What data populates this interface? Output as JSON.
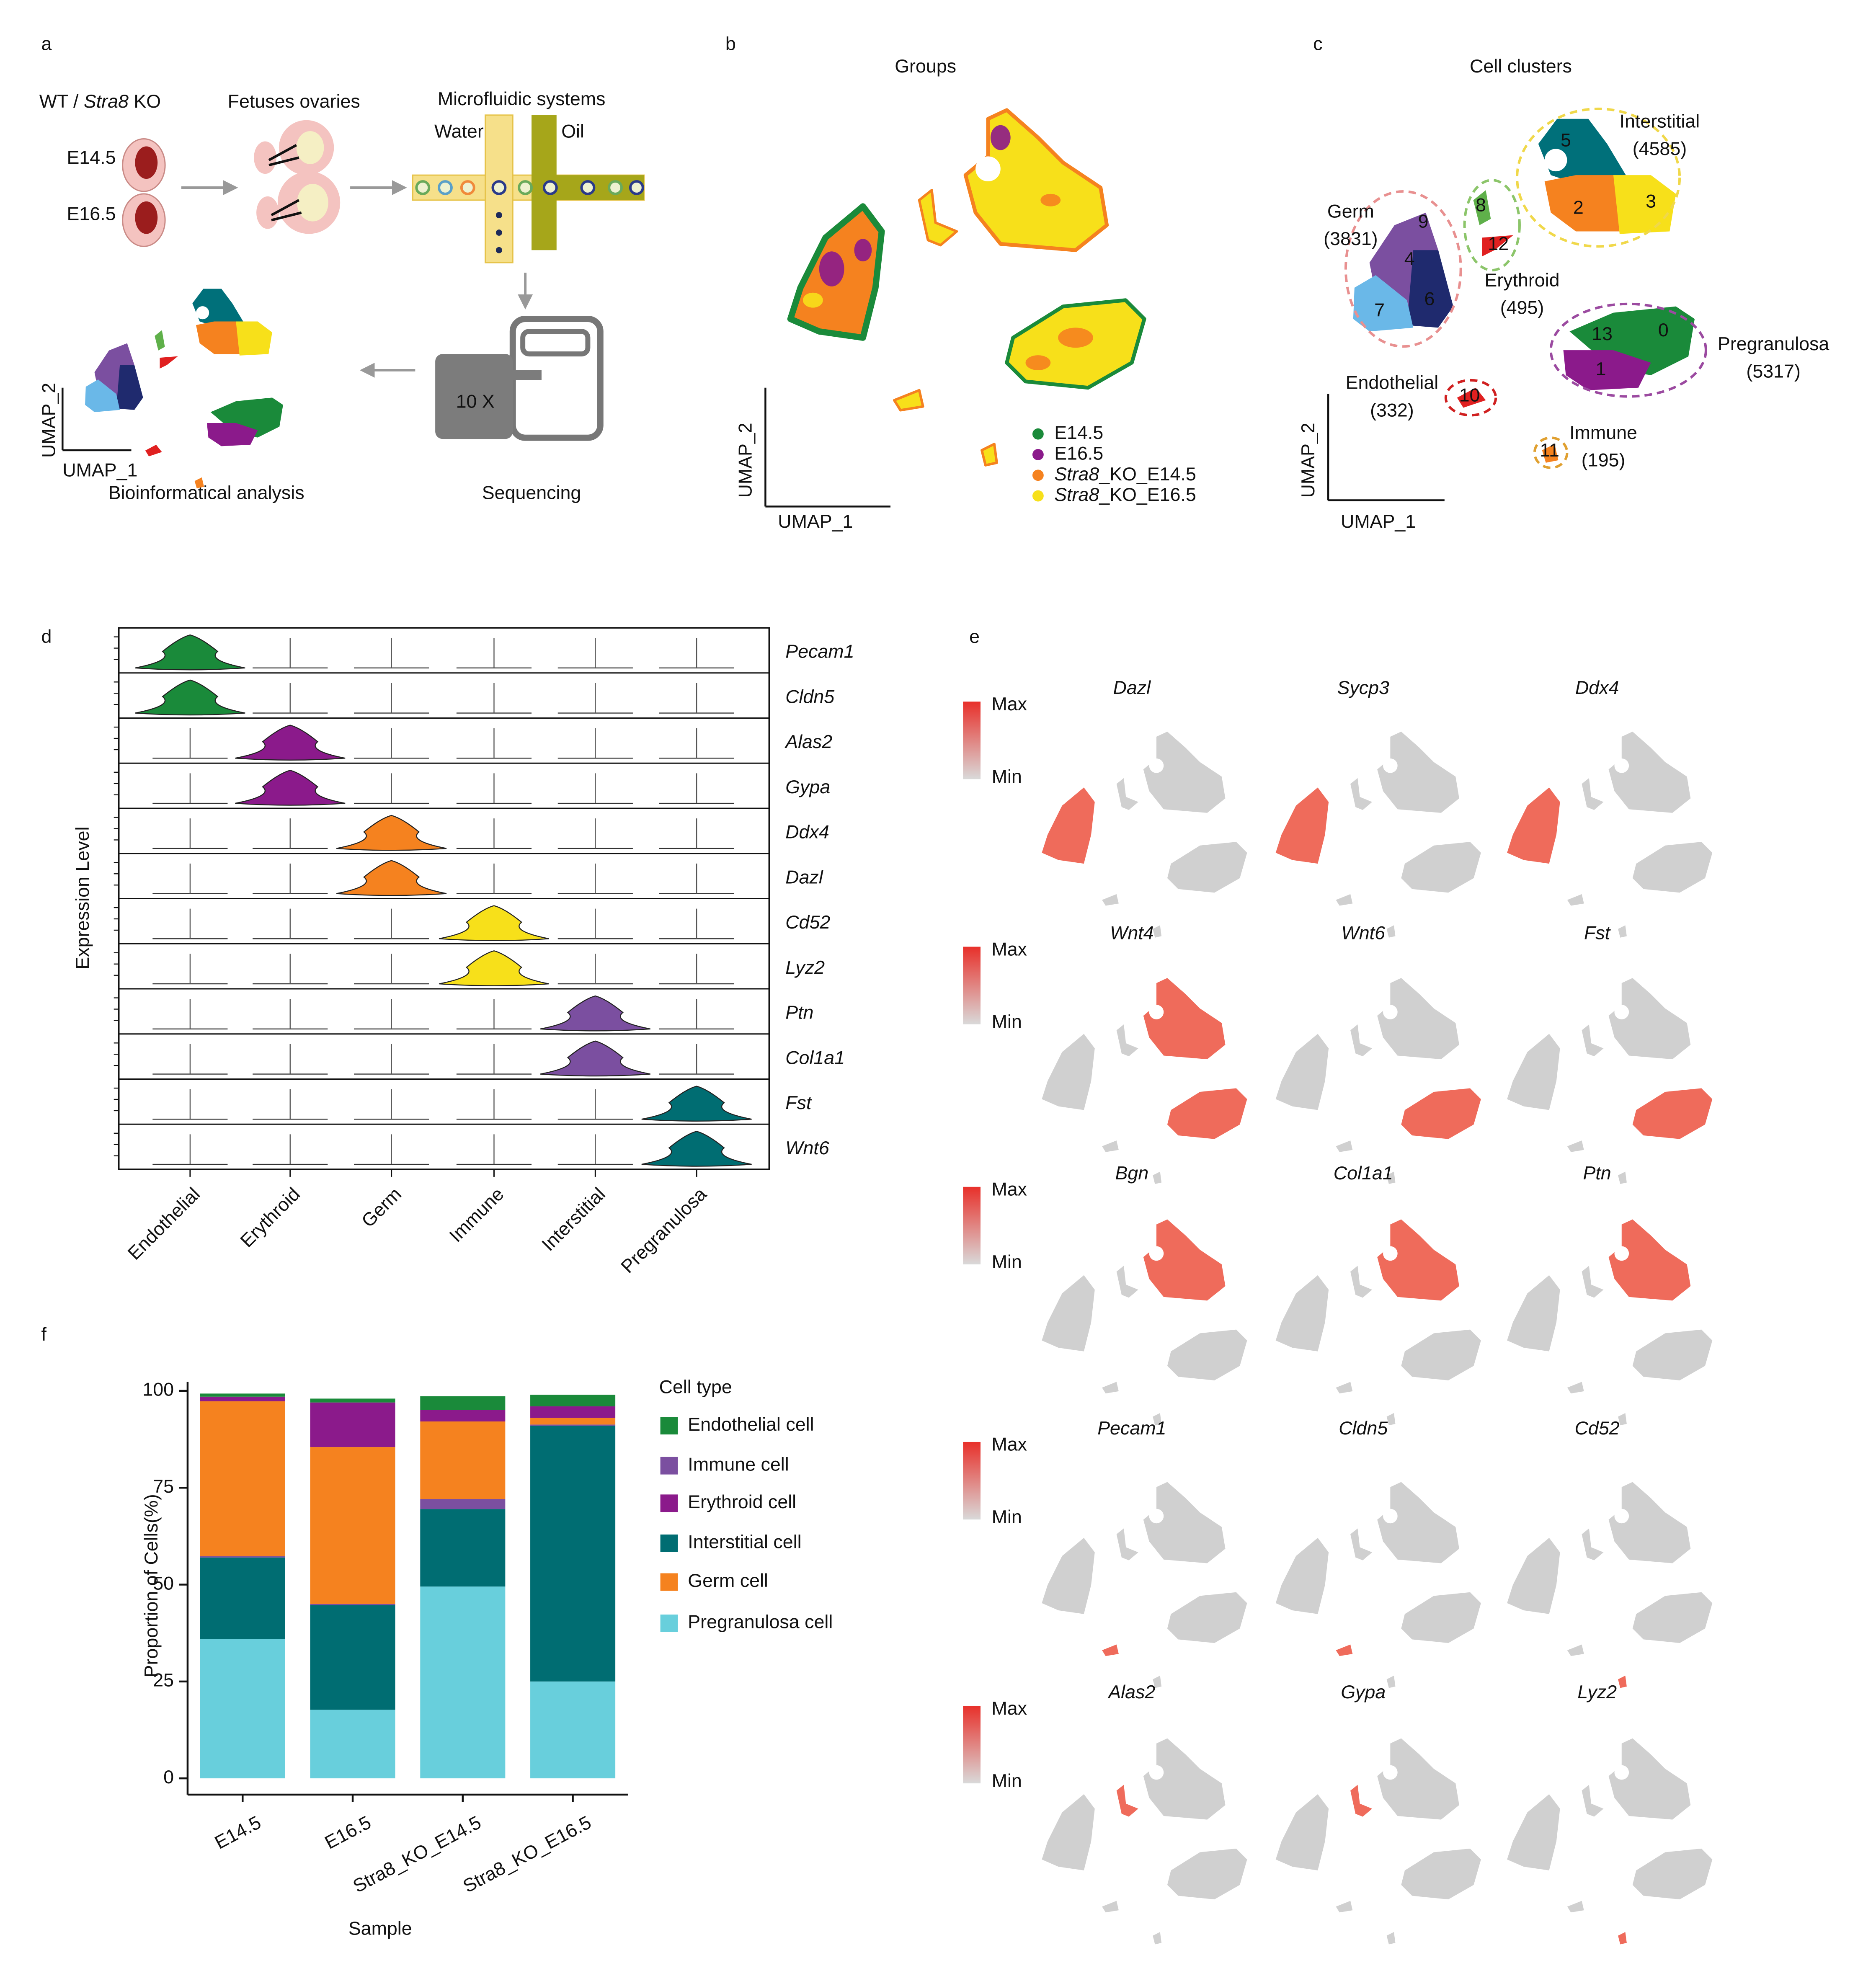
{
  "panel_labels": [
    "a",
    "b",
    "c",
    "d",
    "e",
    "f"
  ],
  "a": {
    "genotype": [
      "WT / ",
      "Stra8",
      " KO"
    ],
    "stages": [
      "E14.5",
      "E16.5"
    ],
    "fetuses": "Fetuses ovaries",
    "microfluidic": "Microfluidic systems",
    "water": "Water",
    "oil": "Oil",
    "device": "10 X",
    "sequencing": "Sequencing",
    "analysis": "Bioinformatical analysis",
    "x_axis": "UMAP_1",
    "y_axis": "UMAP_2"
  },
  "b": {
    "title": "Groups",
    "x_axis": "UMAP_1",
    "y_axis": "UMAP_2",
    "legend": [
      {
        "name": "E14.5",
        "color": "#1a8a3a"
      },
      {
        "name": "E16.5",
        "color": "#8b1a8b"
      },
      {
        "italic": "Stra8",
        "name": "_KO_E14.5",
        "color": "#f5821f"
      },
      {
        "italic": "Stra8",
        "name": "_KO_E16.5",
        "color": "#f7e01a"
      }
    ]
  },
  "c": {
    "title": "Cell clusters",
    "x_axis": "UMAP_1",
    "y_axis": "UMAP_2",
    "groups": [
      {
        "name": "Interstitial",
        "count": "(4585)"
      },
      {
        "name": "Germ",
        "count": "(3831)"
      },
      {
        "name": "Erythroid",
        "count": "(495)"
      },
      {
        "name": "Pregranulosa",
        "count": "(5317)"
      },
      {
        "name": "Endothelial",
        "count": "(332)"
      },
      {
        "name": "Immune",
        "count": "(195)"
      }
    ],
    "clusters": [
      "0",
      "1",
      "2",
      "3",
      "4",
      "5",
      "6",
      "7",
      "8",
      "9",
      "10",
      "11",
      "12",
      "13"
    ]
  },
  "d": {
    "y_axis": "Expression Level",
    "genes": [
      "Pecam1",
      "Cldn5",
      "Alas2",
      "Gypa",
      "Ddx4",
      "Dazl",
      "Cd52",
      "Lyz2",
      "Ptn",
      "Col1a1",
      "Fst",
      "Wnt6"
    ],
    "cell_types": [
      "Endothelial",
      "Erythroid",
      "Germ",
      "Immune",
      "Interstitial",
      "Pregranulosa"
    ]
  },
  "e": {
    "max": "Max",
    "min": "Min",
    "genes": [
      "Dazl",
      "Sycp3",
      "Ddx4",
      "Wnt4",
      "Wnt6",
      "Fst",
      "Bgn",
      "Col1a1",
      "Ptn",
      "Pecam1",
      "Cldn5",
      "Cd52",
      "Alas2",
      "Gypa",
      "Lyz2"
    ]
  },
  "chart_data": {
    "type": "bar",
    "stacked": true,
    "x_label": "Sample",
    "y_label": "Proportion of Cells(%)",
    "legend_title": "Cell type",
    "categories": [
      "E14.5",
      "E16.5",
      "Stra8_KO_E14.5",
      "Stra8_KO_E16.5"
    ],
    "series": [
      {
        "name": "Endothelial cell",
        "color": "#1a8a3a",
        "values": [
          0.8,
          1,
          3.5,
          3
        ]
      },
      {
        "name": "Immune cell",
        "color": "#7b4fa0",
        "values": [
          0.3,
          0.3,
          2.6,
          0.3
        ]
      },
      {
        "name": "Erythroid cell",
        "color": "#8b1a8b",
        "values": [
          1.2,
          11.5,
          3,
          3
        ]
      },
      {
        "name": "Interstitial cell",
        "color": "#006d72",
        "values": [
          21,
          27,
          20,
          66
        ]
      },
      {
        "name": "Germ cell",
        "color": "#f5821f",
        "values": [
          40,
          40.5,
          20,
          1.7
        ]
      },
      {
        "name": "Pregranulosa cell",
        "color": "#68cfdc",
        "values": [
          36,
          17.7,
          49.5,
          25
        ]
      }
    ],
    "ylim": [
      -4.2,
      102.3
    ],
    "yticks": [
      0,
      25,
      50,
      75,
      100
    ]
  }
}
